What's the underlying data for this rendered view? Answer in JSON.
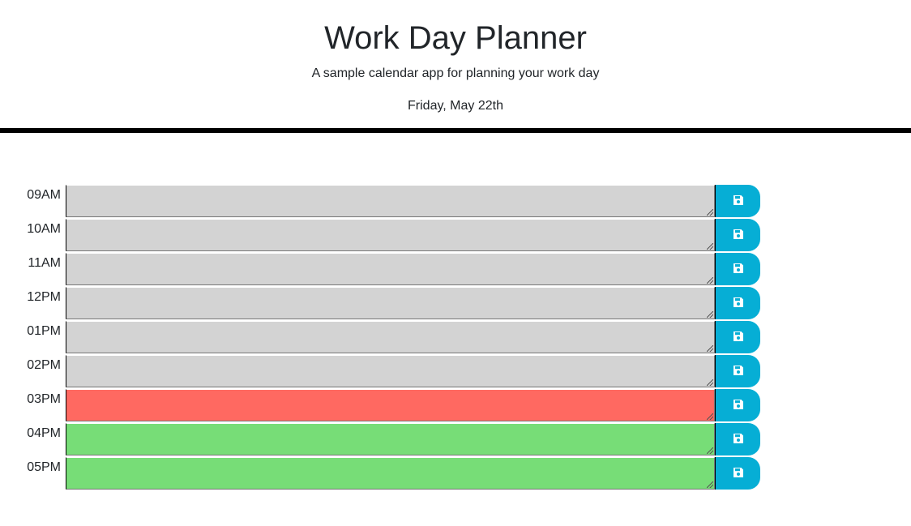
{
  "header": {
    "title": "Work Day Planner",
    "subtitle": "A sample calendar app for planning your work day",
    "current_day": "Friday, May 22th"
  },
  "colors": {
    "past": "#d3d3d3",
    "present": "#ff6961",
    "future": "#77dd77",
    "save_button": "#06aed5"
  },
  "time_blocks": [
    {
      "hour": "09AM",
      "status": "past",
      "text": "",
      "save_icon": "save-icon"
    },
    {
      "hour": "10AM",
      "status": "past",
      "text": "",
      "save_icon": "save-icon"
    },
    {
      "hour": "11AM",
      "status": "past",
      "text": "",
      "save_icon": "save-icon"
    },
    {
      "hour": "12PM",
      "status": "past",
      "text": "",
      "save_icon": "save-icon"
    },
    {
      "hour": "01PM",
      "status": "past",
      "text": "",
      "save_icon": "save-icon"
    },
    {
      "hour": "02PM",
      "status": "past",
      "text": "",
      "save_icon": "save-icon"
    },
    {
      "hour": "03PM",
      "status": "present",
      "text": "",
      "save_icon": "save-icon"
    },
    {
      "hour": "04PM",
      "status": "future",
      "text": "",
      "save_icon": "save-icon"
    },
    {
      "hour": "05PM",
      "status": "future",
      "text": "",
      "save_icon": "save-icon"
    }
  ]
}
